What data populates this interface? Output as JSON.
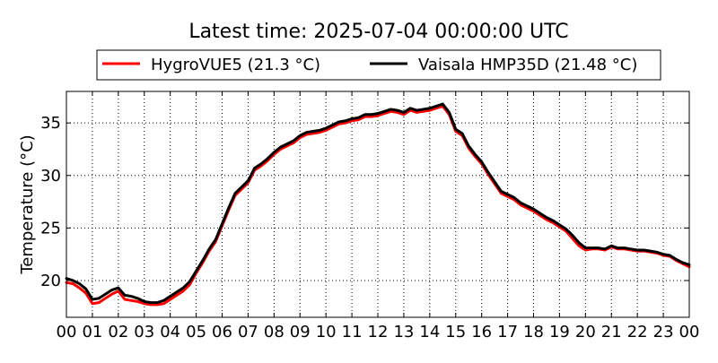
{
  "chart_data": {
    "type": "line",
    "title": "Latest time: 2025-07-04 00:00:00 UTC",
    "xlabel": "",
    "ylabel": "Temperature (°C)",
    "xlim": [
      0,
      24
    ],
    "ylim": [
      16.5,
      38
    ],
    "x_ticks": [
      0,
      1,
      2,
      3,
      4,
      5,
      6,
      7,
      8,
      9,
      10,
      11,
      12,
      13,
      14,
      15,
      16,
      17,
      18,
      19,
      20,
      21,
      22,
      23,
      24
    ],
    "x_tick_labels": [
      "00",
      "01",
      "02",
      "03",
      "04",
      "05",
      "06",
      "07",
      "08",
      "09",
      "10",
      "11",
      "12",
      "13",
      "14",
      "15",
      "16",
      "17",
      "18",
      "19",
      "20",
      "21",
      "22",
      "23",
      "00"
    ],
    "y_ticks": [
      20,
      25,
      30,
      35
    ],
    "y_tick_labels": [
      "20",
      "25",
      "30",
      "35"
    ],
    "grid": true,
    "legend_position": "top-center",
    "series": [
      {
        "name": "HygroVUE5 (21.3 °C)",
        "color": "#ff0000",
        "x": [
          0,
          0.25,
          0.5,
          0.75,
          1,
          1.25,
          1.5,
          1.75,
          2,
          2.25,
          2.5,
          2.75,
          3,
          3.25,
          3.5,
          3.75,
          4,
          4.25,
          4.5,
          4.75,
          5,
          5.25,
          5.5,
          5.75,
          6,
          6.25,
          6.5,
          6.75,
          7,
          7.25,
          7.5,
          7.75,
          8,
          8.25,
          8.5,
          8.75,
          9,
          9.25,
          9.5,
          9.75,
          10,
          10.25,
          10.5,
          10.75,
          11,
          11.25,
          11.5,
          11.75,
          12,
          12.25,
          12.5,
          12.75,
          13,
          13.25,
          13.5,
          13.75,
          14,
          14.25,
          14.5,
          14.75,
          15,
          15.25,
          15.5,
          15.75,
          16,
          16.25,
          16.5,
          16.75,
          17,
          17.25,
          17.5,
          17.75,
          18,
          18.25,
          18.5,
          18.75,
          19,
          19.25,
          19.5,
          19.75,
          20,
          20.25,
          20.5,
          20.75,
          21,
          21.25,
          21.5,
          21.75,
          22,
          22.25,
          22.5,
          22.75,
          23,
          23.25,
          23.5,
          23.75,
          24
        ],
        "y": [
          19.8,
          19.7,
          19.3,
          18.8,
          17.8,
          17.9,
          18.3,
          18.7,
          19.0,
          18.2,
          18.1,
          18.0,
          17.8,
          17.7,
          17.7,
          17.8,
          18.2,
          18.6,
          19.0,
          19.6,
          20.7,
          21.7,
          22.8,
          23.7,
          25.2,
          26.7,
          28.1,
          28.7,
          29.3,
          30.5,
          30.9,
          31.4,
          32.0,
          32.5,
          32.8,
          33.1,
          33.6,
          33.9,
          34.0,
          34.1,
          34.3,
          34.6,
          34.9,
          35.0,
          35.2,
          35.3,
          35.6,
          35.6,
          35.7,
          35.9,
          36.1,
          36.0,
          35.8,
          36.2,
          36.0,
          36.1,
          36.2,
          36.4,
          36.6,
          35.8,
          34.2,
          33.8,
          32.6,
          31.8,
          31.1,
          30.1,
          29.2,
          28.3,
          28.0,
          27.7,
          27.2,
          26.9,
          26.6,
          26.2,
          25.8,
          25.5,
          25.1,
          24.7,
          24.0,
          23.3,
          22.9,
          23.0,
          23.0,
          22.9,
          23.2,
          23.0,
          23.0,
          22.9,
          22.8,
          22.8,
          22.7,
          22.6,
          22.4,
          22.3,
          21.9,
          21.6,
          21.3
        ]
      },
      {
        "name": "Vaisala HMP35D (21.48 °C)",
        "color": "#000000",
        "x": [
          0,
          0.25,
          0.5,
          0.75,
          1,
          1.25,
          1.5,
          1.75,
          2,
          2.25,
          2.5,
          2.75,
          3,
          3.25,
          3.5,
          3.75,
          4,
          4.25,
          4.5,
          4.75,
          5,
          5.25,
          5.5,
          5.75,
          6,
          6.25,
          6.5,
          6.75,
          7,
          7.25,
          7.5,
          7.75,
          8,
          8.25,
          8.5,
          8.75,
          9,
          9.25,
          9.5,
          9.75,
          10,
          10.25,
          10.5,
          10.75,
          11,
          11.25,
          11.5,
          11.75,
          12,
          12.25,
          12.5,
          12.75,
          13,
          13.25,
          13.5,
          13.75,
          14,
          14.25,
          14.5,
          14.75,
          15,
          15.25,
          15.5,
          15.75,
          16,
          16.25,
          16.5,
          16.75,
          17,
          17.25,
          17.5,
          17.75,
          18,
          18.25,
          18.5,
          18.75,
          19,
          19.25,
          19.5,
          19.75,
          20,
          20.25,
          20.5,
          20.75,
          21,
          21.25,
          21.5,
          21.75,
          22,
          22.25,
          22.5,
          22.75,
          23,
          23.25,
          23.5,
          23.75,
          24
        ],
        "y": [
          20.2,
          20.0,
          19.7,
          19.2,
          18.2,
          18.3,
          18.7,
          19.1,
          19.3,
          18.6,
          18.5,
          18.3,
          18.0,
          17.9,
          17.9,
          18.1,
          18.5,
          18.9,
          19.3,
          19.9,
          20.9,
          21.9,
          23.0,
          23.9,
          25.4,
          26.9,
          28.3,
          28.9,
          29.5,
          30.7,
          31.1,
          31.6,
          32.2,
          32.7,
          33.0,
          33.3,
          33.8,
          34.1,
          34.2,
          34.3,
          34.5,
          34.8,
          35.1,
          35.2,
          35.4,
          35.5,
          35.8,
          35.8,
          35.9,
          36.1,
          36.3,
          36.2,
          36.0,
          36.4,
          36.2,
          36.3,
          36.4,
          36.6,
          36.8,
          36.0,
          34.4,
          34.0,
          32.8,
          32.0,
          31.3,
          30.3,
          29.4,
          28.5,
          28.2,
          27.9,
          27.4,
          27.1,
          26.8,
          26.4,
          26.0,
          25.7,
          25.3,
          24.9,
          24.3,
          23.6,
          23.1,
          23.1,
          23.1,
          23.0,
          23.3,
          23.1,
          23.1,
          23.0,
          22.9,
          22.9,
          22.8,
          22.7,
          22.5,
          22.4,
          22.0,
          21.7,
          21.5
        ]
      }
    ]
  }
}
